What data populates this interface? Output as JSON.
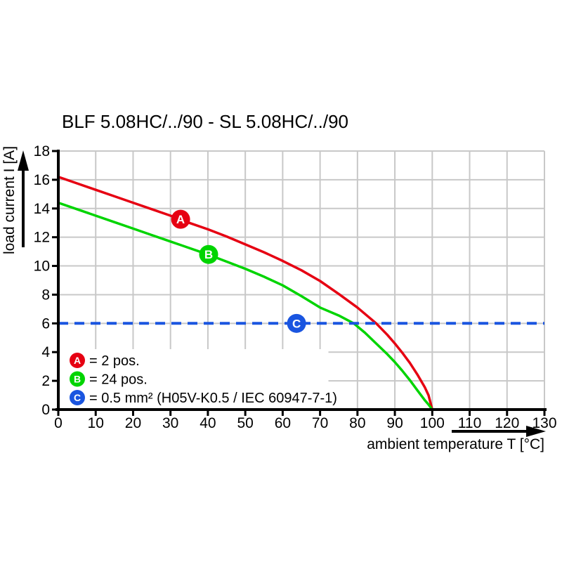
{
  "chart_data": {
    "type": "line",
    "title": "BLF 5.08HC/../90 - SL 5.08HC/../90",
    "xlabel": "ambient temperature T [°C]",
    "ylabel": "load current I [A]",
    "xlim": [
      0,
      130
    ],
    "ylim": [
      0,
      18
    ],
    "xticks": [
      0,
      10,
      20,
      30,
      40,
      50,
      60,
      70,
      80,
      90,
      100,
      110,
      120,
      130
    ],
    "yticks": [
      0,
      2,
      4,
      6,
      8,
      10,
      12,
      14,
      16,
      18
    ],
    "grid": true,
    "grid_color": "#c8c8c8",
    "axis_color": "#000000",
    "legend_position": "inside-bottom-left",
    "series": [
      {
        "name": "A",
        "legend_label": "= 2 pos.",
        "color": "#e60012",
        "line_style": "solid",
        "marker": {
          "x": 32.7,
          "y": 13.25
        },
        "points": [
          [
            0,
            16.2
          ],
          [
            5,
            15.75
          ],
          [
            10,
            15.3
          ],
          [
            15,
            14.85
          ],
          [
            20,
            14.4
          ],
          [
            25,
            13.95
          ],
          [
            30,
            13.5
          ],
          [
            35,
            13.0
          ],
          [
            40,
            12.55
          ],
          [
            45,
            12.05
          ],
          [
            50,
            11.5
          ],
          [
            55,
            10.95
          ],
          [
            60,
            10.35
          ],
          [
            65,
            9.7
          ],
          [
            70,
            8.95
          ],
          [
            75,
            8.05
          ],
          [
            80,
            7.1
          ],
          [
            85,
            6.0
          ],
          [
            88,
            5.2
          ],
          [
            90,
            4.6
          ],
          [
            92,
            3.95
          ],
          [
            94,
            3.25
          ],
          [
            96,
            2.45
          ],
          [
            98,
            1.55
          ],
          [
            99,
            1.0
          ],
          [
            100,
            0
          ]
        ]
      },
      {
        "name": "B",
        "legend_label": "= 24 pos.",
        "color": "#00d400",
        "line_style": "solid",
        "marker": {
          "x": 40.2,
          "y": 10.8
        },
        "points": [
          [
            0,
            14.4
          ],
          [
            5,
            13.95
          ],
          [
            10,
            13.5
          ],
          [
            15,
            13.05
          ],
          [
            20,
            12.6
          ],
          [
            25,
            12.15
          ],
          [
            30,
            11.7
          ],
          [
            35,
            11.25
          ],
          [
            40,
            10.8
          ],
          [
            45,
            10.3
          ],
          [
            50,
            9.8
          ],
          [
            55,
            9.25
          ],
          [
            60,
            8.65
          ],
          [
            65,
            7.9
          ],
          [
            70,
            7.1
          ],
          [
            75,
            6.55
          ],
          [
            79,
            6.0
          ],
          [
            82,
            5.35
          ],
          [
            85,
            4.6
          ],
          [
            88,
            3.85
          ],
          [
            90,
            3.3
          ],
          [
            92,
            2.7
          ],
          [
            94,
            2.05
          ],
          [
            96,
            1.35
          ],
          [
            98,
            0.65
          ],
          [
            99,
            0.35
          ],
          [
            100,
            0
          ]
        ]
      },
      {
        "name": "C",
        "legend_label": "= 0.5 mm² (H05V-K0.5 / IEC 60947-7-1)",
        "color": "#1a55e0",
        "line_style": "dashed",
        "hline": true,
        "y": 6,
        "marker": {
          "x": 63.7,
          "y": 6
        },
        "points": [
          [
            0,
            6
          ],
          [
            130,
            6
          ]
        ]
      }
    ]
  }
}
